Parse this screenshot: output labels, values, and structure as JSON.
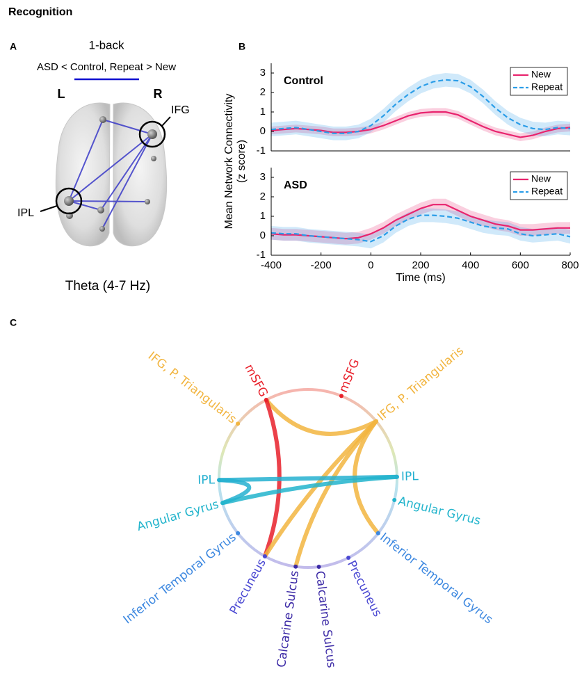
{
  "title": "Recognition",
  "panel_a": {
    "label": "A",
    "condition": "1-back",
    "contrast": "ASD < Control, Repeat > New",
    "left": "L",
    "right": "R",
    "regions": [
      "IFG",
      "IPL"
    ],
    "band": "Theta (4-7 Hz)"
  },
  "panel_b": {
    "label": "B"
  },
  "chart_data": [
    {
      "type": "line",
      "title": "Control",
      "ylabel": [
        "Mean Network Connectivity",
        "(z score)"
      ],
      "x": [
        -400,
        -350,
        -300,
        -250,
        -200,
        -150,
        -100,
        -50,
        0,
        50,
        100,
        150,
        200,
        250,
        300,
        350,
        400,
        450,
        500,
        550,
        600,
        650,
        700,
        750,
        800
      ],
      "series": [
        {
          "name": "New",
          "color": "#e8246e",
          "dash": false,
          "error": 0.2,
          "values": [
            0.05,
            0.1,
            0.15,
            0.1,
            0.05,
            -0.05,
            -0.05,
            0.0,
            0.1,
            0.3,
            0.55,
            0.8,
            0.95,
            1.0,
            1.0,
            0.85,
            0.55,
            0.25,
            0.0,
            -0.15,
            -0.3,
            -0.2,
            0.0,
            0.15,
            0.2
          ]
        },
        {
          "name": "Repeat",
          "color": "#2a9de8",
          "dash": true,
          "error": 0.35,
          "values": [
            0.1,
            0.15,
            0.2,
            0.1,
            0.0,
            -0.1,
            -0.1,
            0.0,
            0.3,
            0.8,
            1.4,
            1.9,
            2.3,
            2.55,
            2.65,
            2.6,
            2.3,
            1.8,
            1.2,
            0.7,
            0.35,
            0.15,
            0.1,
            0.2,
            0.15
          ]
        }
      ],
      "xlim": [
        -400,
        800
      ],
      "ylim": [
        -1,
        3.5
      ],
      "yticks": [
        -1,
        0,
        1,
        2,
        3
      ],
      "legend": "top-right"
    },
    {
      "type": "line",
      "title": "ASD",
      "xlabel": "Time (ms)",
      "x": [
        -400,
        -350,
        -300,
        -250,
        -200,
        -150,
        -100,
        -50,
        0,
        50,
        100,
        150,
        200,
        250,
        300,
        350,
        400,
        450,
        500,
        550,
        600,
        650,
        700,
        750,
        800
      ],
      "series": [
        {
          "name": "New",
          "color": "#e8246e",
          "dash": false,
          "error": 0.3,
          "values": [
            0.1,
            0.05,
            0.05,
            0.0,
            -0.05,
            -0.1,
            -0.15,
            -0.1,
            0.1,
            0.4,
            0.8,
            1.1,
            1.4,
            1.6,
            1.6,
            1.3,
            1.0,
            0.8,
            0.6,
            0.5,
            0.3,
            0.3,
            0.35,
            0.4,
            0.4
          ]
        },
        {
          "name": "Repeat",
          "color": "#2a9de8",
          "dash": true,
          "error": 0.35,
          "values": [
            0.15,
            0.1,
            0.1,
            0.0,
            -0.05,
            -0.1,
            -0.15,
            -0.2,
            -0.3,
            0.0,
            0.5,
            0.85,
            1.05,
            1.05,
            1.0,
            0.9,
            0.7,
            0.5,
            0.4,
            0.35,
            0.1,
            0.0,
            0.05,
            0.1,
            -0.05
          ]
        }
      ],
      "xlim": [
        -400,
        800
      ],
      "xticks": [
        -400,
        -200,
        0,
        200,
        400,
        600,
        800
      ],
      "ylim": [
        -1,
        3.5
      ],
      "yticks": [
        -1,
        0,
        1,
        2,
        3
      ],
      "legend": "top-right"
    }
  ],
  "panel_c": {
    "label": "C",
    "nodes": [
      {
        "label": "mSFG",
        "color": "#e8202a"
      },
      {
        "label": "IFG, P. Triangularis",
        "color": "#f2b540"
      },
      {
        "label": "IPL",
        "color": "#25b0d0"
      },
      {
        "label": "Angular Gyrus",
        "color": "#22b4cc"
      },
      {
        "label": "Inferior Temporal Gyrus",
        "color": "#3d88e0"
      },
      {
        "label": "Precuneus",
        "color": "#4a48d2"
      },
      {
        "label": "Calcarine Sulcus",
        "color": "#3c2aa6"
      },
      {
        "label": "mSFG",
        "color": "#e8202a"
      },
      {
        "label": "IFG, P. Triangularis",
        "color": "#f2b540"
      },
      {
        "label": "IPL",
        "color": "#25b0d0"
      },
      {
        "label": "Angular Gyrus",
        "color": "#22b4cc"
      },
      {
        "label": "Inferior Temporal Gyrus",
        "color": "#3d88e0"
      },
      {
        "label": "Precuneus",
        "color": "#4a48d2"
      },
      {
        "label": "Calcarine Sulcus",
        "color": "#3c2aa6"
      }
    ]
  }
}
